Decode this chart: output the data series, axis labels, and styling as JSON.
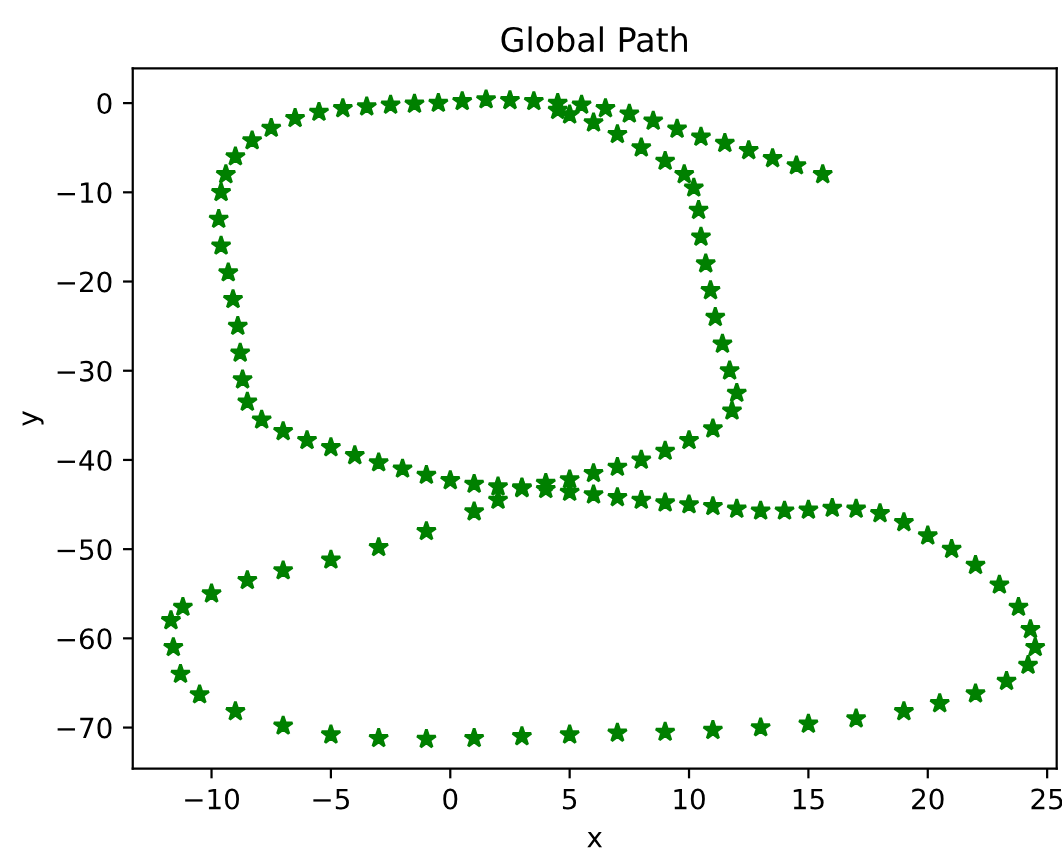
{
  "chart_data": {
    "type": "scatter",
    "title": "Global Path",
    "xlabel": "x",
    "ylabel": "y",
    "marker": "star",
    "grid": false,
    "legend": false,
    "xlim": [
      -13.3,
      25.4
    ],
    "ylim": [
      -74.6,
      3.9
    ],
    "xticks": [
      -10,
      -5,
      0,
      5,
      10,
      15,
      20,
      25
    ],
    "yticks": [
      0,
      -10,
      -20,
      -30,
      -40,
      -50,
      -60,
      -70
    ],
    "x": [
      15.6,
      14.5,
      13.5,
      12.5,
      11.5,
      10.5,
      9.5,
      8.5,
      7.5,
      6.5,
      5.5,
      4.5,
      3.5,
      2.5,
      1.5,
      0.5,
      -0.5,
      -1.5,
      -2.5,
      -3.5,
      -4.5,
      -5.5,
      -6.5,
      -7.5,
      -8.3,
      -9.0,
      -9.4,
      -9.6,
      -9.7,
      -9.6,
      -9.3,
      -9.1,
      -8.9,
      -8.8,
      -8.7,
      -8.5,
      -7.9,
      -7,
      -6,
      -5,
      -4,
      -3,
      -2,
      -1,
      0,
      1,
      2,
      3,
      4,
      5,
      6,
      7,
      8,
      9,
      10,
      11,
      12,
      13,
      14,
      15,
      16,
      17,
      18,
      19,
      20,
      21,
      22,
      23,
      23.8,
      24.3,
      24.5,
      24.2,
      23.3,
      22,
      20.5,
      19,
      17,
      15,
      13,
      11,
      9,
      7,
      5,
      3,
      1,
      -1,
      -3,
      -5,
      -7,
      -9,
      -10.5,
      -11.3,
      -11.6,
      -11.7,
      -11.2,
      -10,
      -8.5,
      -7,
      -5,
      -3,
      -1,
      1,
      2,
      3,
      4,
      5,
      6,
      7,
      8,
      9,
      10,
      11,
      11.8,
      12,
      11.7,
      11.4,
      11.1,
      10.9,
      10.7,
      10.5,
      10.4,
      10.2,
      9.8,
      9,
      8,
      7,
      6,
      5,
      4.5
    ],
    "series": [
      {
        "color": "#008000",
        "values": [
          -8.0,
          -7.0,
          -6.2,
          -5.3,
          -4.5,
          -3.8,
          -2.9,
          -2.0,
          -1.2,
          -0.6,
          -0.2,
          0.0,
          0.2,
          0.3,
          0.4,
          0.2,
          0.0,
          -0.1,
          -0.2,
          -0.4,
          -0.6,
          -1.0,
          -1.7,
          -2.8,
          -4.2,
          -6.0,
          -8.0,
          -10,
          -13,
          -16,
          -19,
          -22,
          -25,
          -28,
          -31,
          -33.5,
          -35.5,
          -36.8,
          -37.8,
          -38.6,
          -39.5,
          -40.3,
          -41,
          -41.7,
          -42.3,
          -42.7,
          -43,
          -43.1,
          -43.3,
          -43.6,
          -43.9,
          -44.2,
          -44.5,
          -44.8,
          -45,
          -45.2,
          -45.5,
          -45.7,
          -45.7,
          -45.6,
          -45.4,
          -45.5,
          -46,
          -47,
          -48.5,
          -50,
          -51.8,
          -54,
          -56.5,
          -59,
          -61,
          -63,
          -64.8,
          -66.2,
          -67.3,
          -68.2,
          -69,
          -69.6,
          -70,
          -70.3,
          -70.5,
          -70.6,
          -70.8,
          -71,
          -71.2,
          -71.3,
          -71.2,
          -70.8,
          -69.8,
          -68.2,
          -66.3,
          -64,
          -61,
          -58,
          -56.5,
          -55,
          -53.5,
          -52.4,
          -51.2,
          -49.8,
          -48,
          -45.8,
          -44.5,
          -43.2,
          -42.6,
          -42.2,
          -41.5,
          -40.8,
          -40,
          -39,
          -37.8,
          -36.5,
          -34.5,
          -32.5,
          -30,
          -27,
          -24,
          -21,
          -18,
          -15,
          -12,
          -9.5,
          -8,
          -6.5,
          -5,
          -3.5,
          -2.2,
          -1.3,
          -0.8
        ]
      }
    ]
  }
}
